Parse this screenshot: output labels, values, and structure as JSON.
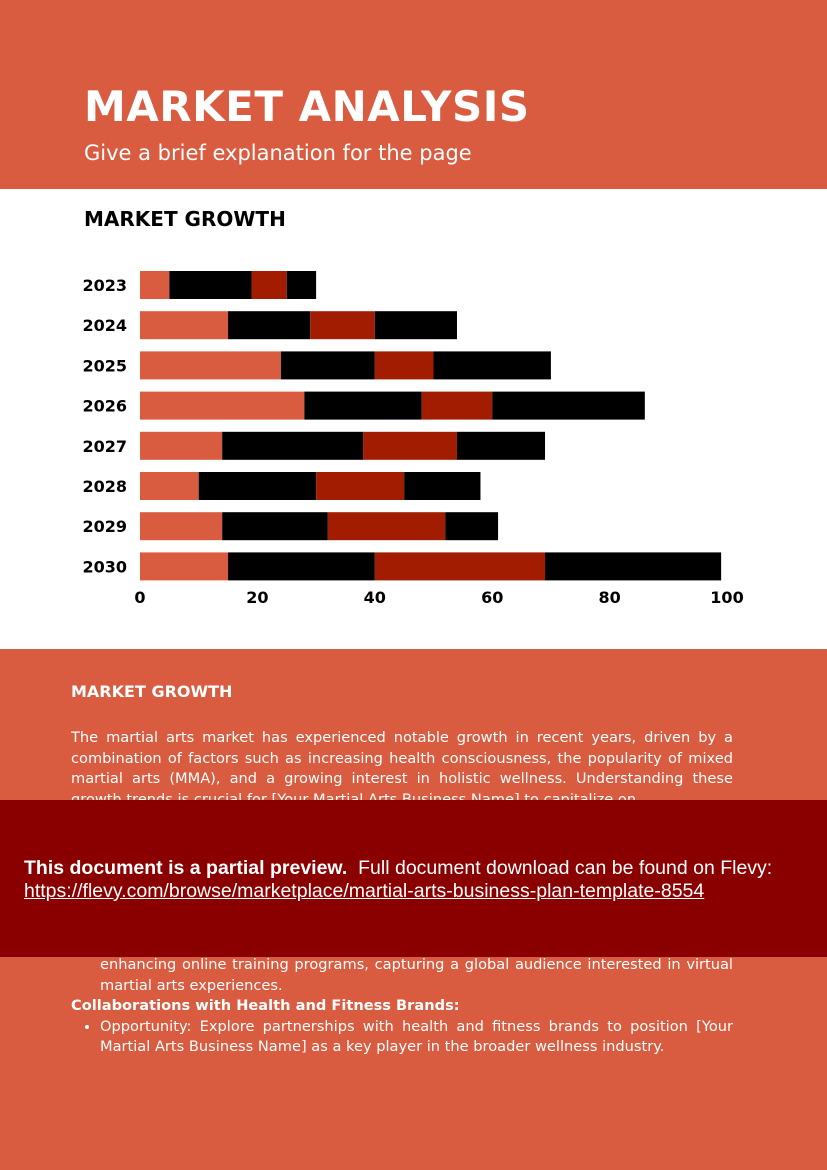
{
  "header": {
    "title": "MARKET ANALYSIS",
    "subtitle": "Give a brief explanation for the page"
  },
  "chart_section": {
    "title": "MARKET GROWTH"
  },
  "chart_data": {
    "type": "bar",
    "orientation": "horizontal",
    "stacked": true,
    "categories": [
      "2023",
      "2024",
      "2025",
      "2026",
      "2027",
      "2028",
      "2029",
      "2030"
    ],
    "series": [
      {
        "color": "#d95c40",
        "values": [
          5,
          15,
          24,
          28,
          14,
          10,
          14,
          15
        ]
      },
      {
        "color": "#000000",
        "values": [
          14,
          14,
          16,
          20,
          24,
          20,
          18,
          25
        ]
      },
      {
        "color": "#a11c00",
        "values": [
          6,
          11,
          10,
          12,
          16,
          15,
          20,
          29
        ]
      },
      {
        "color": "#000000",
        "values": [
          5,
          14,
          20,
          26,
          15,
          13,
          9,
          30
        ]
      }
    ],
    "x_ticks": [
      "0",
      "20",
      "40",
      "60",
      "80",
      "100"
    ],
    "xlim": [
      0,
      100
    ],
    "grid": false,
    "legend": "none"
  },
  "body": {
    "heading": "MARKET GROWTH",
    "paragraph": "The martial arts market has experienced notable growth in recent years, driven by a combination of factors such as increasing health consciousness, the popularity of mixed martial arts (MMA), and a growing interest in holistic wellness. Understanding these growth trends is crucial for [Your Martial Arts Business Name] to capitalize on",
    "continuation": "enhancing online training programs, capturing a global audience interested in virtual martial arts experiences.",
    "sub_heading": "Collaborations with Health and Fitness Brands:",
    "bullet": "Opportunity: Explore partnerships with health and fitness brands to position [Your Martial Arts Business Name] as a key player in the broader wellness industry."
  },
  "preview": {
    "bold_text": "This document is a partial preview.",
    "text": "Full document download can be found on Flevy:",
    "url": "https://flevy.com/browse/marketplace/martial-arts-business-plan-template-8554"
  }
}
